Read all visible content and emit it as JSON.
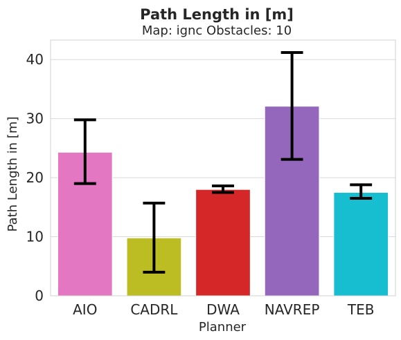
{
  "chart_data": {
    "type": "bar",
    "title": "Path Length in [m]",
    "subtitle": "Map: ignc Obstacles: 10",
    "xlabel": "Planner",
    "ylabel": "Path Length in [m]",
    "categories": [
      "AIO",
      "CADRL",
      "DWA",
      "NAVREP",
      "TEB"
    ],
    "values": [
      24.3,
      9.8,
      18.0,
      32.1,
      17.5
    ],
    "error_low": [
      19.0,
      4.0,
      17.5,
      23.1,
      16.5
    ],
    "error_high": [
      29.8,
      15.7,
      18.6,
      41.2,
      18.8
    ],
    "colors": [
      "#e377c2",
      "#bcbd22",
      "#d62728",
      "#9467bd",
      "#17becf"
    ],
    "ylim": [
      0,
      43.3
    ],
    "yticks": [
      0,
      10,
      20,
      30,
      40
    ],
    "grid": true,
    "legend": "none"
  }
}
